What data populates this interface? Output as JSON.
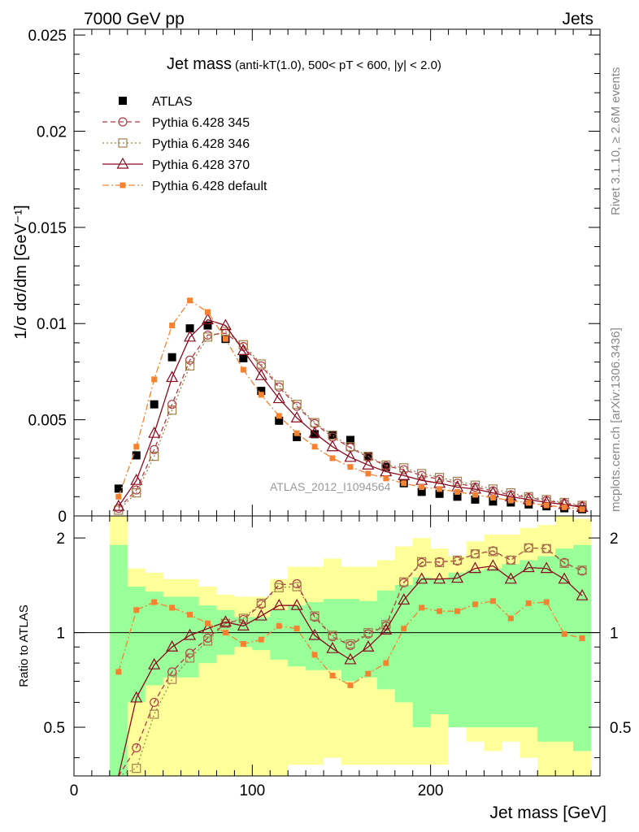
{
  "header": {
    "left": "7000 GeV pp",
    "right": "Jets"
  },
  "side_labels": {
    "rivet": "Rivet 3.1.10, ≥ 2.6M events",
    "mcplots": "mcplots.cern.ch [arXiv:1306.3436]"
  },
  "chart_data": {
    "type": "line",
    "title_main": "Jet mass",
    "title_detail": "(anti-kT(1.0), 500< pT < 600, |y| < 2.0)",
    "watermark": "ATLAS_2012_I1094564",
    "xlabel": "Jet mass [GeV]",
    "ylabel_top": "1/σ dσ/dm [GeV⁻¹]",
    "ylabel_bottom": "Ratio to ATLAS",
    "xlim": [
      0,
      295
    ],
    "ylim_top": [
      0,
      0.0253
    ],
    "ylim_bottom": [
      0.35,
      2.35
    ],
    "x_ticks": [
      "0",
      "100",
      "200"
    ],
    "y_ticks_top": [
      "0",
      "0.005",
      "0.01",
      "0.015",
      "0.02",
      "0.025"
    ],
    "y_ticks_bottom": [
      "0.5",
      "1",
      "2"
    ],
    "x": [
      25,
      35,
      45,
      55,
      65,
      75,
      85,
      95,
      105,
      115,
      125,
      135,
      145,
      155,
      165,
      175,
      185,
      195,
      205,
      215,
      225,
      235,
      245,
      255,
      265,
      275,
      285
    ],
    "series": [
      {
        "name": "ATLAS",
        "color": "#000000",
        "marker": "square-filled",
        "values": [
          0.00142,
          0.00315,
          0.0058,
          0.00825,
          0.00975,
          0.0099,
          0.0092,
          0.0082,
          0.0065,
          0.00495,
          0.0041,
          0.00425,
          0.0042,
          0.00395,
          0.0031,
          0.00255,
          0.0017,
          0.00125,
          0.00115,
          0.001,
          0.00085,
          0.00075,
          0.0007,
          0.0006,
          0.0005,
          0.0004,
          0.00035
        ],
        "ratio": [
          1,
          1,
          1,
          1,
          1,
          1,
          1,
          1,
          1,
          1,
          1,
          1,
          1,
          1,
          1,
          1,
          1,
          1,
          1,
          1,
          1,
          1,
          1,
          1,
          1,
          1,
          1
        ]
      },
      {
        "name": "Pythia 6.428 345",
        "color": "#b03a48",
        "marker": "circle-open",
        "dash": "6,4",
        "values": [
          0.0004,
          0.00135,
          0.00345,
          0.0058,
          0.0081,
          0.0094,
          0.0095,
          0.0088,
          0.0078,
          0.0067,
          0.0057,
          0.0048,
          0.0041,
          0.00355,
          0.00305,
          0.0026,
          0.0024,
          0.0021,
          0.0019,
          0.0017,
          0.0015,
          0.0013,
          0.0011,
          0.00095,
          0.0008,
          0.00065,
          0.0005
        ],
        "ratio": [
          0.28,
          0.43,
          0.6,
          0.75,
          0.86,
          0.96,
          1.07,
          1.1,
          1.23,
          1.42,
          1.43,
          1.12,
          0.97,
          0.91,
          0.99,
          1.05,
          1.44,
          1.67,
          1.68,
          1.69,
          1.78,
          1.82,
          1.7,
          1.86,
          1.85,
          1.67,
          1.57
        ]
      },
      {
        "name": "Pythia 6.428 346",
        "color": "#a0804a",
        "marker": "square-open",
        "dash": "2,3",
        "values": [
          0.0003,
          0.0012,
          0.0031,
          0.0055,
          0.0078,
          0.0093,
          0.0096,
          0.0089,
          0.0079,
          0.0068,
          0.0058,
          0.00485,
          0.0042,
          0.0036,
          0.0031,
          0.00265,
          0.0025,
          0.0022,
          0.002,
          0.0018,
          0.0016,
          0.0014,
          0.0012,
          0.001,
          0.00085,
          0.0007,
          0.00055
        ],
        "ratio": [
          0.22,
          0.37,
          0.55,
          0.71,
          0.83,
          0.94,
          1.07,
          1.11,
          1.24,
          1.39,
          1.4,
          1.13,
          0.98,
          0.92,
          1.0,
          1.06,
          1.45,
          1.68,
          1.67,
          1.7,
          1.78,
          1.81,
          1.7,
          1.86,
          1.85,
          1.66,
          1.58
        ]
      },
      {
        "name": "Pythia 6.428 370",
        "color": "#8b0a1e",
        "marker": "triangle-open",
        "dash": "",
        "values": [
          0.0005,
          0.00185,
          0.0043,
          0.0072,
          0.0093,
          0.0102,
          0.0099,
          0.0086,
          0.0073,
          0.0061,
          0.0051,
          0.0043,
          0.0036,
          0.00305,
          0.00265,
          0.0023,
          0.0021,
          0.00185,
          0.0017,
          0.0015,
          0.0014,
          0.0012,
          0.001,
          0.00085,
          0.0007,
          0.0006,
          0.00045
        ],
        "ratio": [
          0.3,
          0.62,
          0.79,
          0.9,
          0.98,
          1.03,
          1.08,
          1.05,
          1.13,
          1.22,
          1.22,
          0.98,
          0.89,
          0.82,
          0.9,
          1.02,
          1.27,
          1.48,
          1.48,
          1.49,
          1.6,
          1.63,
          1.48,
          1.61,
          1.6,
          1.48,
          1.31
        ]
      },
      {
        "name": "Pythia 6.428 default",
        "color": "#f58230",
        "marker": "square-small-filled",
        "dash": "8,3,2,3",
        "values": [
          0.001,
          0.0036,
          0.0071,
          0.0099,
          0.0112,
          0.0106,
          0.0092,
          0.0076,
          0.0063,
          0.0052,
          0.0043,
          0.0036,
          0.003,
          0.00255,
          0.0022,
          0.00195,
          0.0017,
          0.0015,
          0.0014,
          0.00125,
          0.0011,
          0.00095,
          0.0008,
          0.00068,
          0.00055,
          0.00045,
          0.00035
        ],
        "ratio": [
          0.75,
          1.18,
          1.25,
          1.2,
          1.14,
          1.07,
          1.0,
          0.92,
          0.95,
          1.05,
          1.03,
          0.85,
          0.73,
          0.68,
          0.74,
          0.8,
          1.03,
          1.2,
          1.17,
          1.17,
          1.23,
          1.26,
          1.11,
          1.24,
          1.25,
          0.99,
          0.96
        ]
      }
    ],
    "bands": {
      "x_edges": [
        20,
        30,
        40,
        50,
        60,
        70,
        80,
        90,
        100,
        110,
        120,
        130,
        140,
        150,
        160,
        170,
        180,
        190,
        200,
        210,
        220,
        230,
        240,
        250,
        260,
        270,
        280,
        290
      ],
      "inner_low": [
        0.3,
        0.6,
        0.68,
        0.72,
        0.72,
        0.8,
        0.85,
        0.9,
        0.88,
        0.82,
        0.78,
        0.76,
        0.76,
        0.7,
        0.72,
        0.66,
        0.6,
        0.5,
        0.55,
        0.5,
        0.5,
        0.5,
        0.5,
        0.5,
        0.45,
        0.45,
        0.42
      ],
      "inner_high": [
        1.9,
        1.4,
        1.35,
        1.3,
        1.3,
        1.22,
        1.18,
        1.12,
        1.12,
        1.18,
        1.22,
        1.25,
        1.28,
        1.28,
        1.26,
        1.36,
        1.42,
        1.5,
        1.48,
        1.55,
        1.58,
        1.6,
        1.65,
        1.7,
        1.75,
        1.85,
        1.9
      ],
      "outer_low": [
        0.3,
        0.35,
        0.35,
        0.35,
        0.35,
        0.35,
        0.35,
        0.35,
        0.35,
        0.35,
        0.38,
        0.38,
        0.4,
        0.38,
        0.38,
        0.38,
        0.38,
        0.38,
        0.38,
        0.5,
        0.45,
        0.42,
        0.45,
        0.4,
        0.35,
        0.35,
        0.35
      ],
      "outer_high": [
        2.35,
        1.6,
        1.55,
        1.48,
        1.48,
        1.4,
        1.32,
        1.3,
        1.3,
        1.48,
        1.62,
        1.62,
        1.72,
        1.62,
        1.62,
        1.7,
        1.88,
        2.0,
        1.85,
        1.75,
        1.95,
        2.05,
        2.05,
        2.15,
        2.2,
        2.35,
        2.3
      ]
    }
  }
}
